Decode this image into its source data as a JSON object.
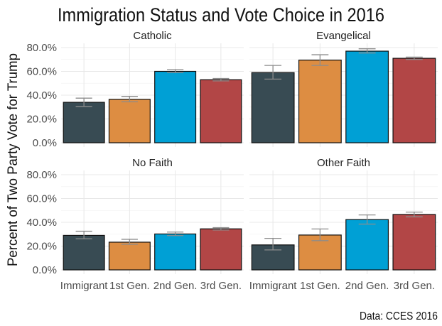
{
  "chart_data": {
    "type": "bar",
    "title": "Immigration Status and Vote Choice in 2016",
    "ylabel": "Percent of Two Party Vote for Trump",
    "xlabel": "",
    "caption": "Data: CCES 2016",
    "ylim": [
      0,
      0.8
    ],
    "yticks": [
      0,
      0.2,
      0.4,
      0.6,
      0.8
    ],
    "ytick_labels": [
      "0.0%",
      "20.0%",
      "40.0%",
      "60.0%",
      "80.0%"
    ],
    "categories": [
      "Immigrant",
      "1st Gen.",
      "2nd Gen.",
      "3rd Gen."
    ],
    "colors": [
      "#384B53",
      "#DD8D42",
      "#00A0D5",
      "#B24646"
    ],
    "errorbar_color": "#8c8c8c",
    "grid": true,
    "legend": "none",
    "facets": [
      {
        "name": "Catholic",
        "values": [
          0.34,
          0.365,
          0.6,
          0.53
        ],
        "lower": [
          0.305,
          0.345,
          0.59,
          0.52
        ],
        "upper": [
          0.375,
          0.39,
          0.615,
          0.54
        ]
      },
      {
        "name": "Evangelical",
        "values": [
          0.59,
          0.695,
          0.77,
          0.71
        ],
        "lower": [
          0.535,
          0.65,
          0.755,
          0.7
        ],
        "upper": [
          0.65,
          0.74,
          0.79,
          0.72
        ]
      },
      {
        "name": "No Faith",
        "values": [
          0.29,
          0.233,
          0.302,
          0.345
        ],
        "lower": [
          0.262,
          0.215,
          0.288,
          0.335
        ],
        "upper": [
          0.325,
          0.257,
          0.318,
          0.355
        ]
      },
      {
        "name": "Other Faith",
        "values": [
          0.21,
          0.293,
          0.423,
          0.466
        ],
        "lower": [
          0.168,
          0.246,
          0.385,
          0.446
        ],
        "upper": [
          0.265,
          0.344,
          0.462,
          0.486
        ]
      }
    ]
  }
}
